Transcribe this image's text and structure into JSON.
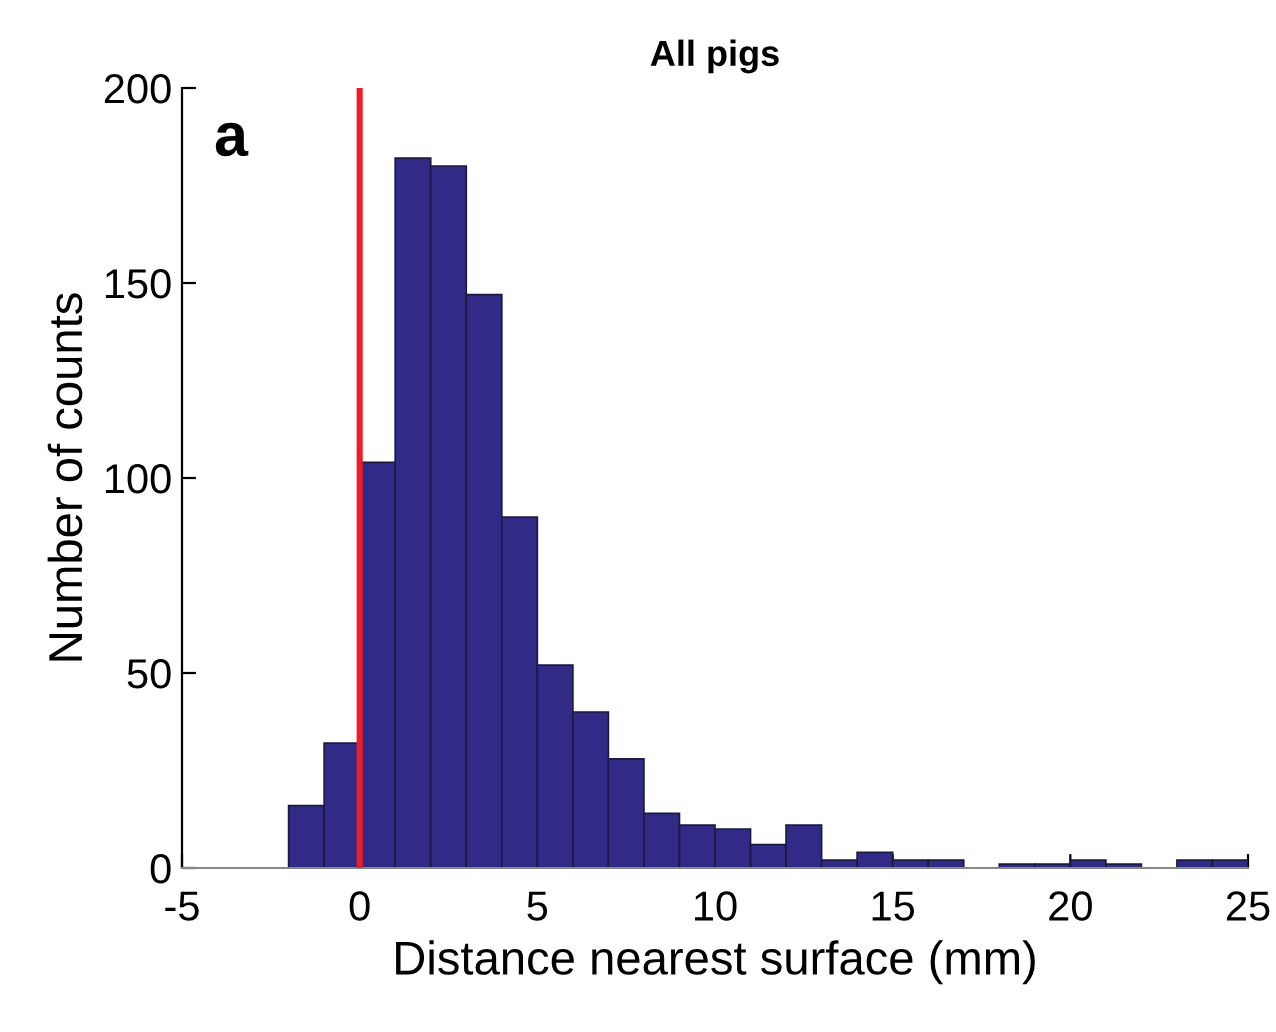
{
  "chart_data": {
    "type": "histogram",
    "title": "All pigs",
    "xlabel": "Distance nearest surface (mm)",
    "ylabel": "Number of counts",
    "bins": [
      -2,
      -1,
      0,
      1,
      2,
      3,
      4,
      5,
      6,
      7,
      8,
      9,
      10,
      11,
      12,
      13,
      14,
      15,
      16,
      17,
      18,
      19,
      20,
      21,
      22,
      23,
      24,
      25
    ],
    "values": [
      16,
      32,
      104,
      182,
      180,
      147,
      90,
      52,
      40,
      28,
      14,
      11,
      10,
      6,
      11,
      2,
      4,
      2,
      2,
      0,
      1,
      1,
      2,
      1,
      0,
      2,
      2
    ],
    "color": "#312a87",
    "xlim": [
      -5,
      25
    ],
    "xticks": [
      -5,
      0,
      5,
      10,
      15,
      20,
      25
    ],
    "ylim": [
      0,
      200
    ],
    "yticks": [
      0,
      50,
      100,
      150,
      200
    ],
    "ref_lines": [
      {
        "axis": "x",
        "value": 0,
        "color": "#ee1c25"
      }
    ],
    "annotations": [
      "a"
    ],
    "grid": false
  }
}
